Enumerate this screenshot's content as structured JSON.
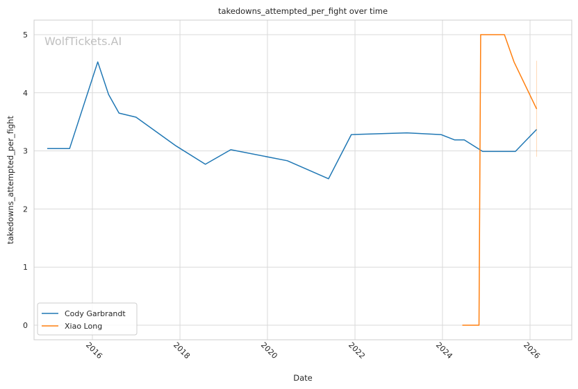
{
  "watermark": "WolfTickets.AI",
  "chart_data": {
    "type": "line",
    "title": "takedowns_attempted_per_fight over time",
    "xlabel": "Date",
    "ylabel": "takedowns_attempted_per_fight",
    "x_ticks": [
      "2016",
      "2018",
      "2020",
      "2022",
      "2024",
      "2026"
    ],
    "y_ticks": [
      "0",
      "1",
      "2",
      "3",
      "4",
      "5"
    ],
    "xlim": [
      "2014-09-01",
      "2026-12-15"
    ],
    "ylim": [
      -0.25,
      5.25
    ],
    "grid": true,
    "legend_position": "lower-left",
    "series": [
      {
        "name": "Cody Garbrandt",
        "color": "#1f77b4",
        "points": [
          [
            "2014-12-20",
            3.04
          ],
          [
            "2015-06-25",
            3.04
          ],
          [
            "2016-02-15",
            4.53
          ],
          [
            "2016-05-15",
            3.97
          ],
          [
            "2016-08-10",
            3.65
          ],
          [
            "2016-12-30",
            3.58
          ],
          [
            "2017-11-25",
            3.09
          ],
          [
            "2018-08-01",
            2.77
          ],
          [
            "2019-03-01",
            3.02
          ],
          [
            "2020-06-15",
            2.83
          ],
          [
            "2021-05-25",
            2.52
          ],
          [
            "2021-12-01",
            3.28
          ],
          [
            "2023-03-10",
            3.31
          ],
          [
            "2023-12-20",
            3.28
          ],
          [
            "2024-04-10",
            3.19
          ],
          [
            "2024-07-01",
            3.19
          ],
          [
            "2024-12-01",
            2.99
          ],
          [
            "2025-06-10",
            2.99
          ],
          [
            "2025-09-01",
            2.99
          ],
          [
            "2026-02-25",
            3.37
          ]
        ]
      },
      {
        "name": "Xiao Long",
        "color": "#ff7f0e",
        "points": [
          [
            "2024-06-15",
            0.0
          ],
          [
            "2024-11-01",
            0.0
          ],
          [
            "2024-11-15",
            5.0
          ],
          [
            "2025-06-01",
            5.0
          ],
          [
            "2025-08-20",
            4.53
          ],
          [
            "2026-02-25",
            3.72
          ]
        ],
        "error_band": {
          "x": "2026-02-25",
          "low": 2.9,
          "high": 4.55
        }
      }
    ]
  }
}
